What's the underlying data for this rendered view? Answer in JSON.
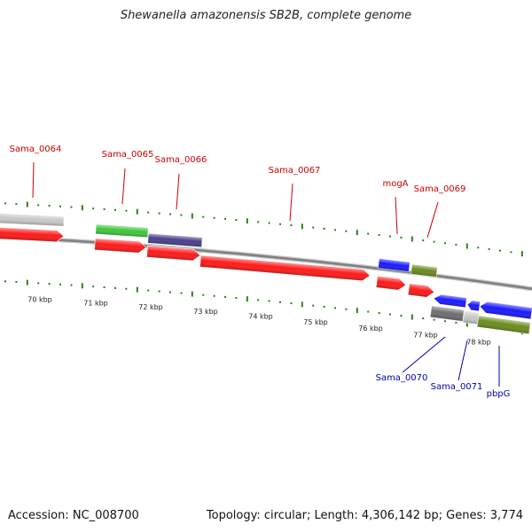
{
  "title": "Shewanella amazonensis SB2B, complete genome",
  "footer": {
    "accession": "Accession: NC_008700",
    "stats": "Topology: circular; Length: 4,306,142 bp; Genes: 3,774"
  },
  "colors": {
    "forward_label": "#cc0000",
    "reverse_label": "#0000aa",
    "tick": "#2e7d1a",
    "backbone": "#808080"
  },
  "ruler": {
    "unit": "kbp",
    "labels": [
      "70 kbp",
      "71 kbp",
      "72 kbp",
      "73 kbp",
      "74 kbp",
      "75 kbp",
      "76 kbp",
      "77 kbp",
      "78 kbp"
    ]
  },
  "features": {
    "forward_genes": [
      {
        "color": "#c8c8c8",
        "strand": "+"
      },
      {
        "color": "#ff1a1a",
        "strand": "+"
      },
      {
        "color": "#3cc83c",
        "strand": "+"
      },
      {
        "color": "#ff1a1a",
        "strand": "+"
      },
      {
        "color": "#4a3f8c",
        "strand": "+"
      },
      {
        "color": "#ff1a1a",
        "strand": "+"
      },
      {
        "color": "#ff1a1a",
        "strand": "+"
      },
      {
        "color": "#1a1aff",
        "strand": "+"
      },
      {
        "color": "#ff1a1a",
        "strand": "+"
      },
      {
        "color": "#6b8c1f",
        "strand": "+"
      },
      {
        "color": "#ff1a1a",
        "strand": "+"
      }
    ],
    "reverse_genes": [
      {
        "color": "#1a1aff",
        "strand": "-"
      },
      {
        "color": "#1a1aff",
        "strand": "-"
      },
      {
        "color": "#1a1aff",
        "strand": "-"
      },
      {
        "color": "#6e6e6e",
        "strand": "-"
      },
      {
        "color": "#c8c8c8",
        "strand": "-"
      },
      {
        "color": "#6b8c1f",
        "strand": "-"
      }
    ],
    "forward_labels": [
      "Sama_0064",
      "Sama_0065",
      "Sama_0066",
      "Sama_0067",
      "mogA",
      "Sama_0069"
    ],
    "reverse_labels": [
      "Sama_0070",
      "Sama_0071",
      "pbpG"
    ]
  }
}
